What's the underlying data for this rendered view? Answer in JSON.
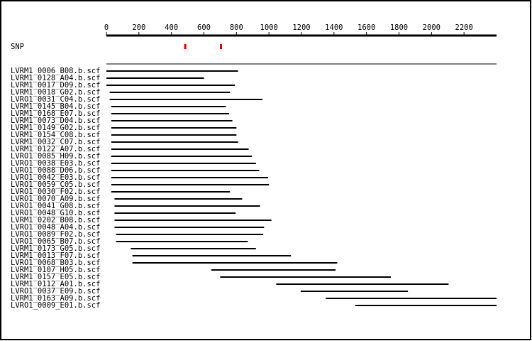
{
  "chart_data": {
    "type": "range",
    "xlim": [
      0,
      2400
    ],
    "xticks": [
      0,
      200,
      400,
      600,
      800,
      1000,
      1200,
      1400,
      1600,
      1800,
      2000,
      2200
    ],
    "snp_label": "SNP",
    "snp_positions": [
      485,
      705
    ],
    "snp_color": "#e00000",
    "read_color": "#000000",
    "categories": [
      "LVRM1_0006_B08.b.scf",
      "LVRM1_0128_A04.b.scf",
      "LVRM1_0017_D09.b.scf",
      "LVRM1_0018_G02.b.scf",
      "LVRO1_0031_C04.b.scf",
      "LVRM1_0145_B04.b.scf",
      "LVRM1_0168_E07.b.scf",
      "LVRM1_0073_D04.b.scf",
      "LVRM1_0149_G02.b.scf",
      "LVRM1_0154_C08.b.scf",
      "LVRM1_0032_C07.b.scf",
      "LVRM1_0122_A07.b.scf",
      "LVRO1_0085_H09.b.scf",
      "LVRO1_0038_E03.b.scf",
      "LVRO1_0088_D06.b.scf",
      "LVRO1_0042_E03.b.scf",
      "LVRO1_0059_C05.b.scf",
      "LVRO1_0030_F02.b.scf",
      "LVRO1_0070_A09.b.scf",
      "LVRO1_0041_G08.b.scf",
      "LVRO1_0048_G10.b.scf",
      "LVRM1_0202_B08.b.scf",
      "LVRO1_0048_A04.b.scf",
      "LVRO1_0089_F02.b.scf",
      "LVRO1_0065_B07.b.scf",
      "LVRM1_0173_G05.b.scf",
      "LVRM1_0013_F07.b.scf",
      "LVRO1_0068_B03.b.scf",
      "LVRM1_0107_H05.b.scf",
      "LVRM1_0157_E05.b.scf",
      "LVRM1_0112_A01.b.scf",
      "LVRO1_0037_E09.b.scf",
      "LVRM1_0163_A09.b.scf",
      "LVRO1_0009_E01.b.scf"
    ],
    "starts": [
      0,
      0,
      0,
      20,
      20,
      30,
      30,
      30,
      30,
      30,
      30,
      30,
      30,
      30,
      30,
      30,
      30,
      30,
      50,
      50,
      50,
      50,
      50,
      60,
      60,
      150,
      160,
      160,
      645,
      700,
      1045,
      1195,
      1350,
      1530
    ],
    "ends": [
      810,
      600,
      790,
      760,
      960,
      735,
      755,
      775,
      800,
      800,
      810,
      875,
      895,
      920,
      940,
      995,
      1000,
      760,
      835,
      945,
      795,
      1015,
      970,
      965,
      870,
      920,
      1135,
      1420,
      1410,
      1750,
      2105,
      1855,
      2400,
      2400
    ]
  }
}
